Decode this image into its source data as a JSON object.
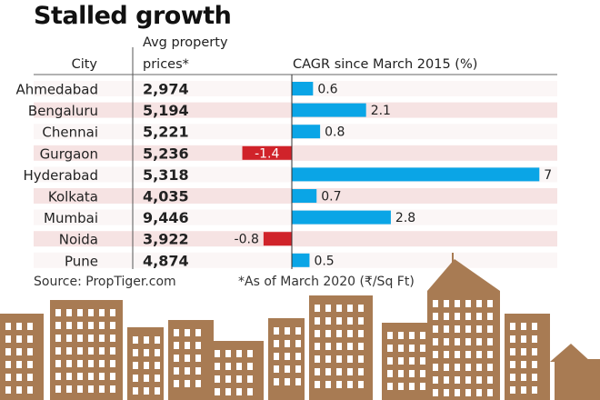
{
  "chart_data": {
    "type": "table",
    "title": "Stalled growth",
    "columns": [
      "City",
      "Avg property prices*",
      "CAGR since March 2015 (%)"
    ],
    "rows": [
      {
        "city": "Ahmedabad",
        "price": "2,974",
        "cagr": 0.6,
        "cagr_label": "0.6"
      },
      {
        "city": "Bengaluru",
        "price": "5,194",
        "cagr": 2.1,
        "cagr_label": "2.1"
      },
      {
        "city": "Chennai",
        "price": "5,221",
        "cagr": 0.8,
        "cagr_label": "0.8"
      },
      {
        "city": "Gurgaon",
        "price": "5,236",
        "cagr": -1.4,
        "cagr_label": "-1.4"
      },
      {
        "city": "Hyderabad",
        "price": "5,318",
        "cagr": 7,
        "cagr_label": "7"
      },
      {
        "city": "Kolkata",
        "price": "4,035",
        "cagr": 0.7,
        "cagr_label": "0.7"
      },
      {
        "city": "Mumbai",
        "price": "9,446",
        "cagr": 2.8,
        "cagr_label": "2.8"
      },
      {
        "city": "Noida",
        "price": "3,922",
        "cagr": -0.8,
        "cagr_label": "-0.8"
      },
      {
        "city": "Pune",
        "price": "4,874",
        "cagr": 0.5,
        "cagr_label": "0.5"
      }
    ],
    "colors": {
      "positive": "#0aa5e6",
      "negative": "#d0232a",
      "row_light": "#fbf6f6",
      "row_dark": "#f6e3e3",
      "skyline": "#a87b53"
    }
  },
  "header": {
    "city": "City",
    "price_line1": "Avg property",
    "price_line2": "prices*",
    "cagr": "CAGR since March 2015 (%)"
  },
  "footer": {
    "source": "Source: PropTiger.com",
    "note": "*As of March 2020 (₹/Sq Ft)"
  }
}
